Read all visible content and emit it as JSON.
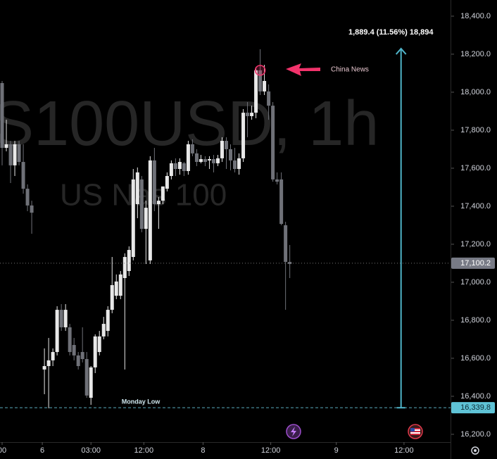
{
  "chart_data": {
    "type": "candlestick",
    "watermark_symbol": "S100USD, 1h",
    "watermark_name": "US Nas 100",
    "up_color": "#e8e8e8",
    "down_color": "#6f7178",
    "x": [
      0,
      1,
      2,
      3,
      4,
      5,
      6,
      7,
      10,
      11,
      12,
      13,
      14,
      15,
      16,
      17,
      18,
      19,
      20,
      21,
      22,
      23,
      24,
      25,
      26,
      27,
      28,
      29,
      30,
      31,
      32,
      33,
      34,
      35,
      36,
      37,
      38,
      39,
      40,
      41,
      42,
      43,
      44,
      45,
      46,
      47,
      48,
      49,
      50,
      51,
      52,
      53,
      54,
      55,
      56,
      57,
      58,
      59,
      60,
      61,
      62,
      63,
      64,
      65,
      66,
      67,
      68
    ],
    "open": [
      18048,
      17707,
      17726,
      17615,
      17726,
      17633,
      17492,
      17404,
      16541,
      16559,
      16589,
      16633,
      16855,
      16763,
      16763,
      16670,
      16615,
      16633,
      16596,
      16392,
      16552,
      16633,
      16715,
      16744,
      16855,
      16929,
      16929,
      17022,
      17059,
      17133,
      17411,
      17541,
      17281,
      17115,
      17641,
      17411,
      17429,
      17492,
      17559,
      17626,
      17596,
      17626,
      17585,
      17726,
      17678,
      17633,
      17648,
      17641,
      17648,
      17626,
      17652,
      17744,
      17700,
      17641,
      17596,
      17652,
      17892,
      17874,
      17892,
      18115,
      18004,
      18004,
      17929,
      17541,
      17541,
      17300,
      17107
    ],
    "high": [
      18059,
      17855,
      17744,
      17744,
      17744,
      17726,
      17515,
      17429,
      16652,
      16707,
      16652,
      16874,
      16885,
      16885,
      16781,
      16707,
      16633,
      16763,
      16633,
      16559,
      16726,
      16744,
      16818,
      16874,
      17133,
      17041,
      17059,
      17152,
      17189,
      17596,
      17604,
      17559,
      17429,
      17663,
      17707,
      17448,
      17504,
      17578,
      17641,
      17652,
      17652,
      17633,
      17744,
      17752,
      17700,
      17670,
      17663,
      17663,
      17670,
      17670,
      17763,
      17763,
      17726,
      17707,
      17678,
      17911,
      17948,
      17929,
      18133,
      18226,
      18144,
      18041,
      17948,
      17578,
      17578,
      17318,
      17196
    ],
    "low": [
      17615,
      17689,
      17522,
      17559,
      17615,
      17466,
      17374,
      17255,
      16411,
      16337,
      16559,
      16615,
      16744,
      16744,
      16615,
      16589,
      16541,
      16578,
      16392,
      16355,
      16522,
      16615,
      16700,
      16715,
      16837,
      16911,
      16911,
      16541,
      17033,
      17115,
      17337,
      17263,
      17096,
      17096,
      17374,
      17281,
      17411,
      17478,
      17541,
      17559,
      17566,
      17559,
      17566,
      17663,
      17611,
      17626,
      17611,
      17596,
      17578,
      17611,
      17633,
      17596,
      17589,
      17578,
      17566,
      17633,
      17763,
      17855,
      17863,
      17985,
      17985,
      17855,
      17529,
      17515,
      17300,
      16855,
      17022
    ],
    "close": [
      17707,
      17726,
      17615,
      17726,
      17633,
      17492,
      17404,
      17366,
      16559,
      16589,
      16633,
      16855,
      16763,
      16855,
      16633,
      16615,
      16559,
      16596,
      16404,
      16552,
      16715,
      16715,
      16781,
      16855,
      16985,
      17004,
      17041,
      17133,
      17170,
      17541,
      17578,
      17281,
      17392,
      17641,
      17411,
      17429,
      17504,
      17559,
      17626,
      17596,
      17633,
      17585,
      17726,
      17678,
      17633,
      17648,
      17633,
      17648,
      17626,
      17652,
      17744,
      17700,
      17641,
      17596,
      17652,
      17892,
      17874,
      17892,
      18115,
      18004,
      18059,
      17929,
      17541,
      17529,
      17307,
      17107,
      17096
    ],
    "xlim": [
      -0.5,
      106
    ],
    "xticks": [
      {
        "value": 0,
        "label": "00"
      },
      {
        "value": 9.5,
        "label": "6"
      },
      {
        "value": 21,
        "label": "03:00"
      },
      {
        "value": 33.5,
        "label": "12:00"
      },
      {
        "value": 47.5,
        "label": "8"
      },
      {
        "value": 63.5,
        "label": "12:00"
      },
      {
        "value": 79,
        "label": "9"
      },
      {
        "value": 95,
        "label": "12:00"
      }
    ],
    "ylim": [
      16159,
      18485
    ],
    "yticks": [
      {
        "value": 16200,
        "label": "16,200.0"
      },
      {
        "value": 16400,
        "label": "16,400.0"
      },
      {
        "value": 16600,
        "label": "16,600.0"
      },
      {
        "value": 16800,
        "label": "16,800.0"
      },
      {
        "value": 17000,
        "label": "17,000.0"
      },
      {
        "value": 17200,
        "label": "17,200.0"
      },
      {
        "value": 17400,
        "label": "17,400.0"
      },
      {
        "value": 17600,
        "label": "17,600.0"
      },
      {
        "value": 17800,
        "label": "17,800.0"
      },
      {
        "value": 18000,
        "label": "18,000.0"
      },
      {
        "value": 18200,
        "label": "18,200.0"
      },
      {
        "value": 18400,
        "label": "18,400.0"
      }
    ],
    "current_price": {
      "value": 17100.2,
      "label": "17,100.2"
    },
    "monday_low": {
      "value": 16339.8,
      "label": "16,339.8",
      "text": "Monday Low"
    },
    "measure": {
      "x": 94.3,
      "from": 16339.8,
      "to": 18229.2,
      "label": "1,889.4 (11.56%) 18,894"
    },
    "annotation": {
      "x": 61,
      "value": 18115,
      "text": "China News"
    }
  }
}
